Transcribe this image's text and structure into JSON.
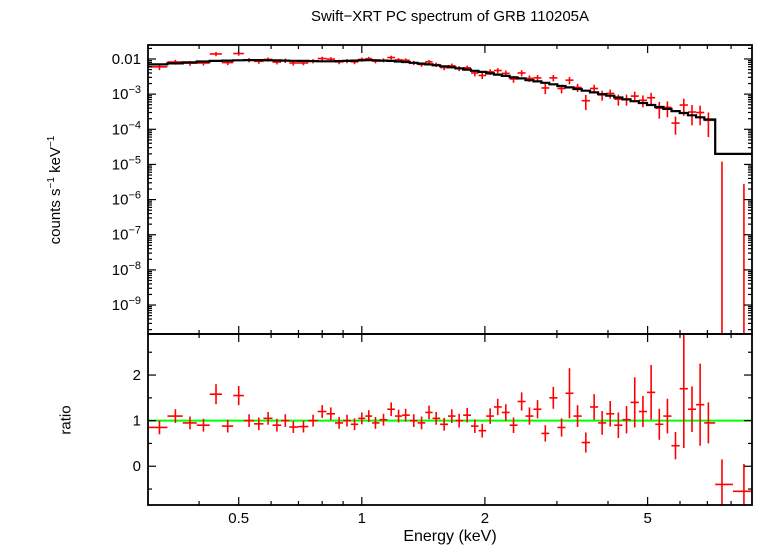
{
  "chart_data": {
    "type": "scatter",
    "layout": "two stacked panels: spectrum with stepped model line (log-log) above, data/model ratio (linear y) below",
    "title": "Swift−XRT PC spectrum of GRB 110205A",
    "colors": {
      "data": "#ff0000",
      "model": "#000000",
      "ratio_line": "#00ff00",
      "frame": "#000000",
      "background": "#ffffff"
    },
    "x_axis": {
      "label": "Energy (keV)",
      "scale": "log",
      "min": 0.3,
      "max": 9.0,
      "major": [
        {
          "v": 0.5,
          "label": "0.5"
        },
        {
          "v": 1,
          "label": "1"
        },
        {
          "v": 2,
          "label": "2"
        },
        {
          "v": 5,
          "label": "5"
        }
      ],
      "minor": [
        0.4,
        0.6,
        0.7,
        0.8,
        0.9,
        3,
        4,
        6,
        7,
        8,
        9
      ]
    },
    "top_panel": {
      "scale": "log",
      "min": 1.5e-10,
      "max": 0.025,
      "ylabel_parts": {
        "p1": "counts s",
        "s1": "−1",
        "p2": " keV",
        "s2": "−1"
      },
      "major": [
        {
          "v": 0.01,
          "text": "0.01"
        },
        {
          "v": 0.001,
          "exp": -3
        },
        {
          "v": 0.0001,
          "exp": -4
        },
        {
          "v": 1e-05,
          "exp": -5
        },
        {
          "v": 1e-06,
          "exp": -6
        },
        {
          "v": 1e-07,
          "exp": -7
        },
        {
          "v": 1e-08,
          "exp": -8
        },
        {
          "v": 1e-09,
          "exp": -9
        }
      ]
    },
    "bottom_panel": {
      "label": "ratio",
      "min": -0.85,
      "max": 2.9,
      "major": [
        {
          "v": 0,
          "label": "0"
        },
        {
          "v": 1,
          "label": "1"
        },
        {
          "v": 2,
          "label": "2"
        }
      ],
      "minor": [
        -0.5,
        0.5,
        1.5,
        2.5
      ],
      "line": {
        "y": 1,
        "color": "#00ff00"
      }
    },
    "points": [
      {
        "e": 0.32,
        "y": 0.006,
        "yerr": 0.0012,
        "model": 0.007,
        "ratio": 0.85,
        "rerr": 0.15
      },
      {
        "e": 0.35,
        "y": 0.0082,
        "yerr": 0.0013,
        "model": 0.0075,
        "ratio": 1.1,
        "rerr": 0.15
      },
      {
        "e": 0.38,
        "y": 0.0076,
        "yerr": 0.0012,
        "model": 0.008,
        "ratio": 0.95,
        "rerr": 0.14
      },
      {
        "e": 0.41,
        "y": 0.0077,
        "yerr": 0.0012,
        "model": 0.0085,
        "ratio": 0.9,
        "rerr": 0.14
      },
      {
        "e": 0.44,
        "y": 0.0139,
        "yerr": 0.0019,
        "model": 0.0088,
        "ratio": 1.58,
        "rerr": 0.22
      },
      {
        "e": 0.47,
        "y": 0.0079,
        "yerr": 0.0012,
        "model": 0.009,
        "ratio": 0.88,
        "rerr": 0.14
      },
      {
        "e": 0.5,
        "y": 0.0143,
        "yerr": 0.0019,
        "model": 0.0092,
        "ratio": 1.55,
        "rerr": 0.21
      },
      {
        "e": 0.53,
        "y": 0.0093,
        "yerr": 0.0013,
        "model": 0.0093,
        "ratio": 1.0,
        "rerr": 0.14
      },
      {
        "e": 0.56,
        "y": 0.0086,
        "yerr": 0.0013,
        "model": 0.0093,
        "ratio": 0.93,
        "rerr": 0.14
      },
      {
        "e": 0.59,
        "y": 0.0097,
        "yerr": 0.0013,
        "model": 0.0092,
        "ratio": 1.05,
        "rerr": 0.14
      },
      {
        "e": 0.62,
        "y": 0.0082,
        "yerr": 0.0012,
        "model": 0.0091,
        "ratio": 0.9,
        "rerr": 0.14
      },
      {
        "e": 0.65,
        "y": 0.009,
        "yerr": 0.0013,
        "model": 0.009,
        "ratio": 1.0,
        "rerr": 0.14
      },
      {
        "e": 0.68,
        "y": 0.0077,
        "yerr": 0.0012,
        "model": 0.0089,
        "ratio": 0.86,
        "rerr": 0.13
      },
      {
        "e": 0.72,
        "y": 0.0077,
        "yerr": 0.0011,
        "model": 0.0088,
        "ratio": 0.87,
        "rerr": 0.13
      },
      {
        "e": 0.76,
        "y": 0.0087,
        "yerr": 0.0012,
        "model": 0.0087,
        "ratio": 1.0,
        "rerr": 0.13
      },
      {
        "e": 0.8,
        "y": 0.0103,
        "yerr": 0.0013,
        "model": 0.0086,
        "ratio": 1.2,
        "rerr": 0.14
      },
      {
        "e": 0.84,
        "y": 0.0099,
        "yerr": 0.0013,
        "model": 0.0086,
        "ratio": 1.15,
        "rerr": 0.14
      },
      {
        "e": 0.88,
        "y": 0.0083,
        "yerr": 0.0012,
        "model": 0.0087,
        "ratio": 0.95,
        "rerr": 0.13
      },
      {
        "e": 0.92,
        "y": 0.0088,
        "yerr": 0.0012,
        "model": 0.0088,
        "ratio": 1.0,
        "rerr": 0.13
      },
      {
        "e": 0.96,
        "y": 0.0083,
        "yerr": 0.0012,
        "model": 0.009,
        "ratio": 0.92,
        "rerr": 0.13
      },
      {
        "e": 1.0,
        "y": 0.0097,
        "yerr": 0.0013,
        "model": 0.0092,
        "ratio": 1.05,
        "rerr": 0.13
      },
      {
        "e": 1.04,
        "y": 0.0102,
        "yerr": 0.0013,
        "model": 0.0093,
        "ratio": 1.1,
        "rerr": 0.13
      },
      {
        "e": 1.08,
        "y": 0.0087,
        "yerr": 0.0012,
        "model": 0.0092,
        "ratio": 0.95,
        "rerr": 0.13
      },
      {
        "e": 1.13,
        "y": 0.0092,
        "yerr": 0.0012,
        "model": 0.009,
        "ratio": 1.02,
        "rerr": 0.13
      },
      {
        "e": 1.18,
        "y": 0.011,
        "yerr": 0.0014,
        "model": 0.0088,
        "ratio": 1.25,
        "rerr": 0.15
      },
      {
        "e": 1.23,
        "y": 0.0094,
        "yerr": 0.0012,
        "model": 0.0085,
        "ratio": 1.1,
        "rerr": 0.14
      },
      {
        "e": 1.28,
        "y": 0.0092,
        "yerr": 0.0012,
        "model": 0.0082,
        "ratio": 1.12,
        "rerr": 0.14
      },
      {
        "e": 1.34,
        "y": 0.0078,
        "yerr": 0.0011,
        "model": 0.0078,
        "ratio": 1.0,
        "rerr": 0.14
      },
      {
        "e": 1.4,
        "y": 0.007,
        "yerr": 0.001,
        "model": 0.0074,
        "ratio": 0.95,
        "rerr": 0.14
      },
      {
        "e": 1.46,
        "y": 0.0083,
        "yerr": 0.0011,
        "model": 0.007,
        "ratio": 1.18,
        "rerr": 0.15
      },
      {
        "e": 1.52,
        "y": 0.0069,
        "yerr": 0.001,
        "model": 0.0066,
        "ratio": 1.05,
        "rerr": 0.14
      },
      {
        "e": 1.59,
        "y": 0.0057,
        "yerr": 0.0009,
        "model": 0.0062,
        "ratio": 0.92,
        "rerr": 0.14
      },
      {
        "e": 1.66,
        "y": 0.0064,
        "yerr": 0.001,
        "model": 0.0058,
        "ratio": 1.1,
        "rerr": 0.15
      },
      {
        "e": 1.73,
        "y": 0.0054,
        "yerr": 0.0009,
        "model": 0.0054,
        "ratio": 1.0,
        "rerr": 0.15
      },
      {
        "e": 1.81,
        "y": 0.0056,
        "yerr": 0.0009,
        "model": 0.005,
        "ratio": 1.12,
        "rerr": 0.16
      },
      {
        "e": 1.89,
        "y": 0.004,
        "yerr": 0.0008,
        "model": 0.0046,
        "ratio": 0.88,
        "rerr": 0.15
      },
      {
        "e": 1.97,
        "y": 0.0034,
        "yerr": 0.0007,
        "model": 0.0043,
        "ratio": 0.78,
        "rerr": 0.15
      },
      {
        "e": 2.06,
        "y": 0.0043,
        "yerr": 0.0008,
        "model": 0.0039,
        "ratio": 1.1,
        "rerr": 0.17
      },
      {
        "e": 2.15,
        "y": 0.0047,
        "yerr": 0.0008,
        "model": 0.0036,
        "ratio": 1.3,
        "rerr": 0.18
      },
      {
        "e": 2.25,
        "y": 0.0039,
        "yerr": 0.0008,
        "model": 0.0033,
        "ratio": 1.18,
        "rerr": 0.18
      },
      {
        "e": 2.35,
        "y": 0.0027,
        "yerr": 0.0006,
        "model": 0.003,
        "ratio": 0.9,
        "rerr": 0.17
      },
      {
        "e": 2.46,
        "y": 0.004,
        "yerr": 0.0008,
        "model": 0.0028,
        "ratio": 1.42,
        "rerr": 0.2
      },
      {
        "e": 2.57,
        "y": 0.0028,
        "yerr": 0.0006,
        "model": 0.0025,
        "ratio": 1.1,
        "rerr": 0.19
      },
      {
        "e": 2.69,
        "y": 0.0029,
        "yerr": 0.0006,
        "model": 0.0023,
        "ratio": 1.25,
        "rerr": 0.2
      },
      {
        "e": 2.81,
        "y": 0.0015,
        "yerr": 0.0005,
        "model": 0.0021,
        "ratio": 0.72,
        "rerr": 0.18
      },
      {
        "e": 2.94,
        "y": 0.0029,
        "yerr": 0.0006,
        "model": 0.0019,
        "ratio": 1.5,
        "rerr": 0.24
      },
      {
        "e": 3.08,
        "y": 0.00145,
        "yerr": 0.0004,
        "model": 0.0017,
        "ratio": 0.85,
        "rerr": 0.2
      },
      {
        "e": 3.22,
        "y": 0.0025,
        "yerr": 0.0006,
        "model": 0.00155,
        "ratio": 1.6,
        "rerr": 0.55
      },
      {
        "e": 3.37,
        "y": 0.00155,
        "yerr": 0.0004,
        "model": 0.0014,
        "ratio": 1.1,
        "rerr": 0.24
      },
      {
        "e": 3.53,
        "y": 0.00065,
        "yerr": 0.0003,
        "model": 0.00125,
        "ratio": 0.52,
        "rerr": 0.22
      },
      {
        "e": 3.7,
        "y": 0.00145,
        "yerr": 0.0004,
        "model": 0.00112,
        "ratio": 1.3,
        "rerr": 0.28
      },
      {
        "e": 3.87,
        "y": 0.00095,
        "yerr": 0.0003,
        "model": 0.001,
        "ratio": 0.95,
        "rerr": 0.26
      },
      {
        "e": 4.05,
        "y": 0.00105,
        "yerr": 0.0003,
        "model": 0.0009,
        "ratio": 1.15,
        "rerr": 0.28
      },
      {
        "e": 4.24,
        "y": 0.00072,
        "yerr": 0.00025,
        "model": 0.0008,
        "ratio": 0.9,
        "rerr": 0.28
      },
      {
        "e": 4.44,
        "y": 0.00072,
        "yerr": 0.00025,
        "model": 0.00071,
        "ratio": 1.02,
        "rerr": 0.3
      },
      {
        "e": 4.65,
        "y": 0.00088,
        "yerr": 0.0003,
        "model": 0.00063,
        "ratio": 1.4,
        "rerr": 0.55
      },
      {
        "e": 4.87,
        "y": 0.00067,
        "yerr": 0.00025,
        "model": 0.00056,
        "ratio": 1.2,
        "rerr": 0.34
      },
      {
        "e": 5.1,
        "y": 0.00079,
        "yerr": 0.0003,
        "model": 0.00049,
        "ratio": 1.62,
        "rerr": 0.6
      },
      {
        "e": 5.34,
        "y": 0.0004,
        "yerr": 0.0002,
        "model": 0.00043,
        "ratio": 0.92,
        "rerr": 0.34
      },
      {
        "e": 5.59,
        "y": 0.00042,
        "yerr": 0.0002,
        "model": 0.00038,
        "ratio": 1.1,
        "rerr": 0.38
      },
      {
        "e": 5.85,
        "y": 0.00015,
        "yerr": 8e-05,
        "model": 0.00033,
        "ratio": 0.45,
        "rerr": 0.3
      },
      {
        "e": 6.13,
        "y": 0.00049,
        "yerr": 0.00025,
        "model": 0.00029,
        "ratio": 1.7,
        "rerr": 1.3
      },
      {
        "e": 6.42,
        "y": 0.00031,
        "yerr": 0.00018,
        "model": 0.00025,
        "ratio": 1.25,
        "rerr": 0.5
      },
      {
        "e": 6.72,
        "y": 0.0003,
        "yerr": 0.00017,
        "model": 0.00022,
        "ratio": 1.35,
        "rerr": 0.9
      },
      {
        "e": 7.04,
        "y": 0.00018,
        "yerr": 0.00012,
        "model": 0.00019,
        "ratio": 0.95,
        "rerr": 0.45
      },
      {
        "e": 7.6,
        "y": null,
        "yup": 1.2e-05,
        "model": 2e-05,
        "ratio": -0.4,
        "rerr": 0.55
      },
      {
        "e": 8.6,
        "y": null,
        "yup": 2.8e-06,
        "model": 2e-05,
        "ratio": -0.55,
        "rerr": 0.6
      }
    ]
  }
}
